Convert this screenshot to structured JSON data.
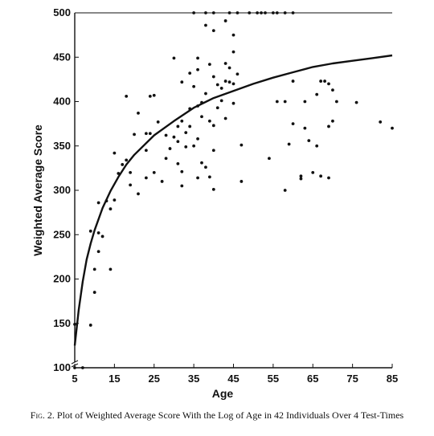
{
  "caption": {
    "label": "Fig. 2.",
    "text": "Plot of Weighted Average Score With the Log of Age in 42 Individuals Over 4 Test-Times"
  },
  "chart_data": {
    "type": "scatter",
    "xlabel": "Age",
    "ylabel": "Weighted Average Score",
    "xlim": [
      5,
      85
    ],
    "ylim": [
      100,
      500
    ],
    "x_ticks": [
      "5",
      "15",
      "25",
      "35",
      "45",
      "55",
      "65",
      "75",
      "85"
    ],
    "y_ticks": [
      "100",
      "150",
      "200",
      "250",
      "300",
      "350",
      "400",
      "450",
      "500"
    ],
    "axis_break": "y",
    "grid": false,
    "colors": {
      "points": "#111111",
      "curve": "#111111",
      "axes": "#111111"
    },
    "points": [
      [
        5,
        149
      ],
      [
        5,
        100
      ],
      [
        7,
        100
      ],
      [
        9,
        254
      ],
      [
        9,
        148
      ],
      [
        10,
        185
      ],
      [
        10,
        211
      ],
      [
        11,
        231
      ],
      [
        11,
        252
      ],
      [
        11,
        286
      ],
      [
        12,
        248
      ],
      [
        13,
        288
      ],
      [
        14,
        211
      ],
      [
        14,
        279
      ],
      [
        15,
        289
      ],
      [
        15,
        342
      ],
      [
        16,
        319
      ],
      [
        17,
        329
      ],
      [
        18,
        406
      ],
      [
        18,
        334
      ],
      [
        19,
        320
      ],
      [
        19,
        306
      ],
      [
        20,
        363
      ],
      [
        21,
        296
      ],
      [
        21,
        387
      ],
      [
        23,
        364
      ],
      [
        23,
        345
      ],
      [
        23,
        314
      ],
      [
        24,
        406
      ],
      [
        24,
        364
      ],
      [
        25,
        320
      ],
      [
        25,
        407
      ],
      [
        26,
        377
      ],
      [
        27,
        310
      ],
      [
        28,
        336
      ],
      [
        28,
        362
      ],
      [
        29,
        347
      ],
      [
        30,
        360
      ],
      [
        30,
        449
      ],
      [
        31,
        355
      ],
      [
        31,
        330
      ],
      [
        31,
        372
      ],
      [
        32,
        305
      ],
      [
        32,
        321
      ],
      [
        32,
        378
      ],
      [
        32,
        422
      ],
      [
        33,
        349
      ],
      [
        33,
        365
      ],
      [
        34,
        372
      ],
      [
        34,
        392
      ],
      [
        34,
        432
      ],
      [
        35,
        500
      ],
      [
        35,
        417
      ],
      [
        35,
        350
      ],
      [
        36,
        449
      ],
      [
        36,
        436
      ],
      [
        36,
        395
      ],
      [
        36,
        358
      ],
      [
        36,
        314
      ],
      [
        37,
        331
      ],
      [
        37,
        383
      ],
      [
        37,
        399
      ],
      [
        38,
        486
      ],
      [
        38,
        500
      ],
      [
        38,
        409
      ],
      [
        38,
        326
      ],
      [
        39,
        442
      ],
      [
        39,
        378
      ],
      [
        39,
        315
      ],
      [
        40,
        500
      ],
      [
        40,
        480
      ],
      [
        40,
        428
      ],
      [
        40,
        373
      ],
      [
        40,
        345
      ],
      [
        40,
        301
      ],
      [
        41,
        419
      ],
      [
        41,
        393
      ],
      [
        42,
        415
      ],
      [
        42,
        401
      ],
      [
        43,
        491
      ],
      [
        43,
        443
      ],
      [
        43,
        423
      ],
      [
        43,
        381
      ],
      [
        44,
        500
      ],
      [
        44,
        438
      ],
      [
        44,
        422
      ],
      [
        45,
        475
      ],
      [
        45,
        456
      ],
      [
        45,
        420
      ],
      [
        45,
        398
      ],
      [
        46,
        500
      ],
      [
        46,
        431
      ],
      [
        47,
        351
      ],
      [
        47,
        310
      ],
      [
        49,
        500
      ],
      [
        51,
        500
      ],
      [
        52,
        500
      ],
      [
        53,
        500
      ],
      [
        54,
        336
      ],
      [
        55,
        500
      ],
      [
        56,
        500
      ],
      [
        56,
        400
      ],
      [
        58,
        500
      ],
      [
        58,
        300
      ],
      [
        58,
        400
      ],
      [
        59,
        352
      ],
      [
        60,
        500
      ],
      [
        60,
        423
      ],
      [
        60,
        375
      ],
      [
        62,
        316
      ],
      [
        62,
        313
      ],
      [
        63,
        400
      ],
      [
        63,
        370
      ],
      [
        64,
        356
      ],
      [
        65,
        320
      ],
      [
        66,
        408
      ],
      [
        66,
        350
      ],
      [
        67,
        423
      ],
      [
        67,
        316
      ],
      [
        68,
        423
      ],
      [
        69,
        420
      ],
      [
        69,
        372
      ],
      [
        69,
        314
      ],
      [
        70,
        413
      ],
      [
        70,
        378
      ],
      [
        71,
        400
      ],
      [
        76,
        399
      ],
      [
        82,
        377
      ],
      [
        85,
        370
      ]
    ],
    "fit": {
      "type": "log",
      "x": [
        5,
        6,
        7,
        8,
        9,
        10,
        12,
        14,
        16,
        18,
        20,
        25,
        30,
        35,
        40,
        45,
        50,
        55,
        60,
        65,
        70,
        75,
        80,
        85
      ],
      "y": [
        125,
        165,
        197,
        222,
        240,
        255,
        280,
        299,
        315,
        329,
        340,
        362,
        378,
        393,
        404,
        412,
        420,
        427,
        433,
        439,
        443,
        446,
        449,
        452
      ]
    }
  }
}
